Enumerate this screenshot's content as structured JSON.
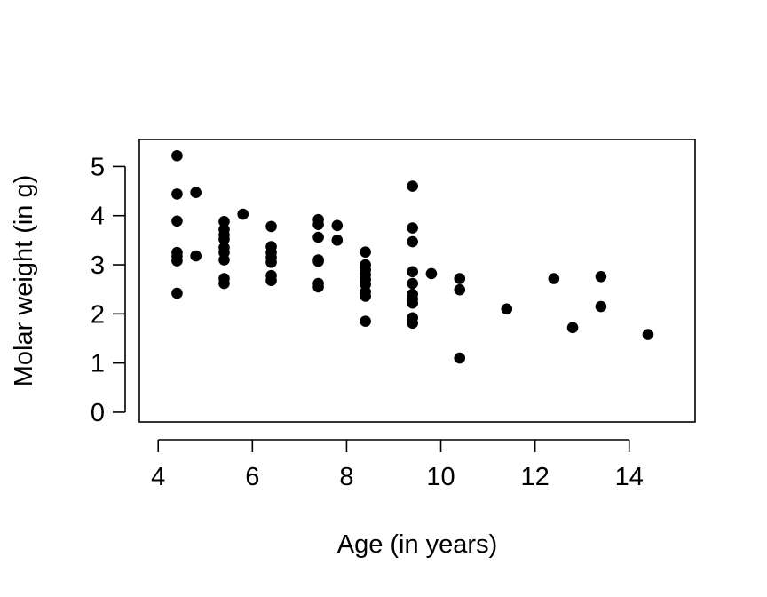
{
  "chart_data": {
    "type": "scatter",
    "title": "",
    "xlabel": "Age (in years)",
    "ylabel": "Molar weight (in g)",
    "xlim": [
      3.6,
      15.4
    ],
    "ylim": [
      -0.2,
      5.55
    ],
    "x_ticks": [
      4,
      6,
      8,
      10,
      12,
      14
    ],
    "y_ticks": [
      0,
      1,
      2,
      3,
      4,
      5
    ],
    "x_tick_labels": [
      "4",
      "6",
      "8",
      "10",
      "12",
      "14"
    ],
    "y_tick_labels": [
      "0",
      "1",
      "2",
      "3",
      "4",
      "5"
    ],
    "grid": false,
    "legend": "none",
    "point_color": "#000000",
    "points": [
      {
        "x": 4.4,
        "y": 5.22
      },
      {
        "x": 4.4,
        "y": 4.44
      },
      {
        "x": 4.4,
        "y": 3.89
      },
      {
        "x": 4.4,
        "y": 3.25
      },
      {
        "x": 4.4,
        "y": 3.17
      },
      {
        "x": 4.4,
        "y": 3.08
      },
      {
        "x": 4.4,
        "y": 2.42
      },
      {
        "x": 4.8,
        "y": 4.47
      },
      {
        "x": 4.8,
        "y": 3.18
      },
      {
        "x": 5.4,
        "y": 3.88
      },
      {
        "x": 5.4,
        "y": 3.72
      },
      {
        "x": 5.4,
        "y": 3.61
      },
      {
        "x": 5.4,
        "y": 3.52
      },
      {
        "x": 5.4,
        "y": 3.35
      },
      {
        "x": 5.4,
        "y": 3.25
      },
      {
        "x": 5.4,
        "y": 3.1
      },
      {
        "x": 5.4,
        "y": 2.72
      },
      {
        "x": 5.4,
        "y": 2.62
      },
      {
        "x": 5.8,
        "y": 4.03
      },
      {
        "x": 6.4,
        "y": 3.78
      },
      {
        "x": 6.4,
        "y": 3.37
      },
      {
        "x": 6.4,
        "y": 3.25
      },
      {
        "x": 6.4,
        "y": 3.15
      },
      {
        "x": 6.4,
        "y": 3.05
      },
      {
        "x": 6.4,
        "y": 2.78
      },
      {
        "x": 6.4,
        "y": 2.68
      },
      {
        "x": 7.4,
        "y": 3.92
      },
      {
        "x": 7.4,
        "y": 3.82
      },
      {
        "x": 7.4,
        "y": 3.56
      },
      {
        "x": 7.4,
        "y": 3.1
      },
      {
        "x": 7.4,
        "y": 3.07
      },
      {
        "x": 7.4,
        "y": 2.62
      },
      {
        "x": 7.4,
        "y": 2.55
      },
      {
        "x": 7.8,
        "y": 3.8
      },
      {
        "x": 7.8,
        "y": 3.5
      },
      {
        "x": 8.4,
        "y": 3.26
      },
      {
        "x": 8.4,
        "y": 3.0
      },
      {
        "x": 8.4,
        "y": 2.9
      },
      {
        "x": 8.4,
        "y": 2.8
      },
      {
        "x": 8.4,
        "y": 2.7
      },
      {
        "x": 8.4,
        "y": 2.6
      },
      {
        "x": 8.4,
        "y": 2.45
      },
      {
        "x": 8.4,
        "y": 2.36
      },
      {
        "x": 8.4,
        "y": 1.85
      },
      {
        "x": 9.4,
        "y": 4.6
      },
      {
        "x": 9.4,
        "y": 3.75
      },
      {
        "x": 9.4,
        "y": 3.47
      },
      {
        "x": 9.4,
        "y": 2.86
      },
      {
        "x": 9.4,
        "y": 2.62
      },
      {
        "x": 9.4,
        "y": 2.4
      },
      {
        "x": 9.4,
        "y": 2.3
      },
      {
        "x": 9.4,
        "y": 2.22
      },
      {
        "x": 9.4,
        "y": 1.92
      },
      {
        "x": 9.4,
        "y": 1.81
      },
      {
        "x": 9.8,
        "y": 2.82
      },
      {
        "x": 10.4,
        "y": 2.72
      },
      {
        "x": 10.4,
        "y": 2.49
      },
      {
        "x": 10.4,
        "y": 1.1
      },
      {
        "x": 11.4,
        "y": 2.1
      },
      {
        "x": 12.4,
        "y": 2.72
      },
      {
        "x": 12.8,
        "y": 1.72
      },
      {
        "x": 13.4,
        "y": 2.76
      },
      {
        "x": 13.4,
        "y": 2.15
      },
      {
        "x": 14.4,
        "y": 1.58
      }
    ]
  }
}
